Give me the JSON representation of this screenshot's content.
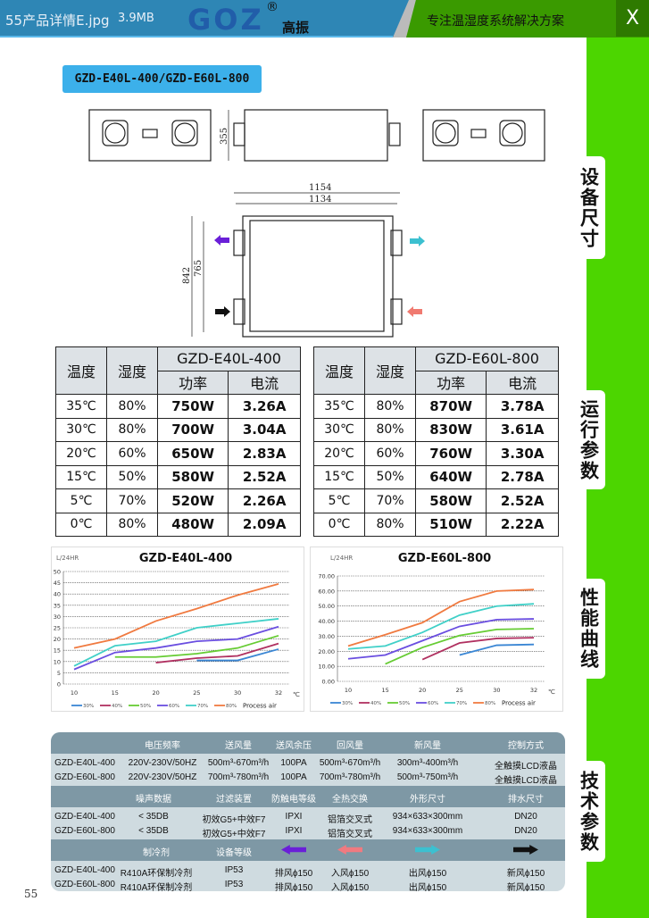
{
  "header": {
    "file_name": "55产品详情E.jpg",
    "file_size": "3.9MB",
    "logo": "GOZ",
    "logo_cn": "高振",
    "registered": "®",
    "slogan": "专注温湿度系统解决方案",
    "close": "X"
  },
  "model_label": "GZD-E40L-400/GZD-E60L-800",
  "side_tabs": [
    "设备尺寸",
    "运行参数",
    "性能曲线",
    "技术参数"
  ],
  "dimensions": {
    "height": "355",
    "width_outer": "1154",
    "width_inner": "1134",
    "depth_outer": "842",
    "depth_inner": "765"
  },
  "arrow_colors": {
    "exhaust": "#6a1fd8",
    "intake": "#f07070",
    "outlet": "#3cc0d0",
    "fresh": "#111111"
  },
  "tables": [
    {
      "model": "GZD-E40L-400",
      "headers": {
        "temp": "温度",
        "hum": "湿度",
        "power": "功率",
        "current": "电流"
      },
      "rows": [
        [
          "35℃",
          "80%",
          "750W",
          "3.26A"
        ],
        [
          "30℃",
          "80%",
          "700W",
          "3.04A"
        ],
        [
          "20℃",
          "60%",
          "650W",
          "2.83A"
        ],
        [
          "15℃",
          "50%",
          "580W",
          "2.52A"
        ],
        [
          "5℃",
          "70%",
          "520W",
          "2.26A"
        ],
        [
          "0℃",
          "80%",
          "480W",
          "2.09A"
        ]
      ]
    },
    {
      "model": "GZD-E60L-800",
      "headers": {
        "temp": "温度",
        "hum": "湿度",
        "power": "功率",
        "current": "电流"
      },
      "rows": [
        [
          "35℃",
          "80%",
          "870W",
          "3.78A"
        ],
        [
          "30℃",
          "80%",
          "830W",
          "3.61A"
        ],
        [
          "20℃",
          "60%",
          "760W",
          "3.30A"
        ],
        [
          "15℃",
          "50%",
          "640W",
          "2.78A"
        ],
        [
          "5℃",
          "70%",
          "580W",
          "2.52A"
        ],
        [
          "0℃",
          "80%",
          "510W",
          "2.22A"
        ]
      ]
    }
  ],
  "chart_data": [
    {
      "type": "line",
      "title": "GZD-E40L-400",
      "ylabel": "L/24HR",
      "xlabel": "℃",
      "legend_suffix": "Process air",
      "legend_placement": "bottom",
      "grid": true,
      "x": [
        10,
        15,
        20,
        25,
        30,
        32
      ],
      "ylim": [
        0,
        50
      ],
      "yticks": [
        0,
        5,
        10,
        15,
        20,
        25,
        30,
        35,
        40,
        45,
        50
      ],
      "ytick_labels": [
        "0",
        "5",
        "10",
        "15",
        "20",
        "25",
        "30",
        "35",
        "40",
        "45",
        "50"
      ],
      "series": [
        {
          "name": "30%",
          "color": "#3a86d4",
          "values": [
            null,
            null,
            null,
            10.5,
            10.5,
            15.5
          ]
        },
        {
          "name": "40%",
          "color": "#b03060",
          "values": [
            null,
            null,
            9.5,
            11.5,
            12.5,
            18
          ]
        },
        {
          "name": "50%",
          "color": "#66cc33",
          "values": [
            null,
            12,
            12,
            13.5,
            16,
            21.5
          ]
        },
        {
          "name": "60%",
          "color": "#6a4ee0",
          "values": [
            6.5,
            14,
            16,
            19,
            20,
            25.5
          ]
        },
        {
          "name": "70%",
          "color": "#40d0c8",
          "values": [
            8,
            17,
            19,
            25,
            27,
            29
          ]
        },
        {
          "name": "80%",
          "color": "#f07a40",
          "values": [
            16,
            20,
            28,
            33.5,
            39.5,
            44.5
          ]
        }
      ]
    },
    {
      "type": "line",
      "title": "GZD-E60L-800",
      "ylabel": "L/24HR",
      "xlabel": "℃",
      "legend_suffix": "Process air",
      "legend_placement": "bottom",
      "grid": true,
      "x": [
        10,
        15,
        20,
        25,
        30,
        32
      ],
      "ylim": [
        0,
        70
      ],
      "yticks": [
        0,
        10,
        20,
        30,
        40,
        50,
        60,
        70
      ],
      "ytick_labels": [
        "0.00",
        "10.00",
        "20.00",
        "30.00",
        "40.00",
        "50.00",
        "60.00",
        "70.00"
      ],
      "series": [
        {
          "name": "30%",
          "color": "#3a86d4",
          "values": [
            null,
            null,
            null,
            17.5,
            24,
            24.5
          ]
        },
        {
          "name": "40%",
          "color": "#b03060",
          "values": [
            null,
            null,
            14.5,
            25.5,
            28.5,
            29
          ]
        },
        {
          "name": "50%",
          "color": "#66cc33",
          "values": [
            null,
            11.5,
            22.5,
            30.5,
            34.5,
            35
          ]
        },
        {
          "name": "60%",
          "color": "#6a4ee0",
          "values": [
            15,
            17.5,
            27,
            36.5,
            41,
            41.5
          ]
        },
        {
          "name": "70%",
          "color": "#40d0c8",
          "values": [
            21.5,
            23.5,
            32.5,
            44,
            50,
            51.5
          ]
        },
        {
          "name": "80%",
          "color": "#f07a40",
          "values": [
            23.5,
            31,
            39,
            53,
            60,
            61
          ]
        }
      ]
    }
  ],
  "spec": {
    "sections": [
      {
        "headers": [
          "",
          "电压频率",
          "送风量",
          "送风余压",
          "回风量",
          "新风量",
          "控制方式"
        ],
        "rows": [
          [
            "GZD-E40L-400",
            "220V-230V/50HZ",
            "500m³-670m³/h",
            "100PA",
            "500m³-670m³/h",
            "300m³-400m³/h",
            "全触摸LCD液晶"
          ],
          [
            "GZD-E60L-800",
            "220V-230V/50HZ",
            "700m³-780m³/h",
            "100PA",
            "700m³-780m³/h",
            "500m³-750m³/h",
            "全触摸LCD液晶"
          ]
        ]
      },
      {
        "headers": [
          "",
          "噪声数据",
          "过滤装置",
          "防触电等级",
          "全热交换",
          "外形尺寸",
          "排水尺寸"
        ],
        "rows": [
          [
            "GZD-E40L-400",
            "< 35DB",
            "初效G5+中效F7",
            "IPXI",
            "铝箔交叉式",
            "934×633×300mm",
            "DN20"
          ],
          [
            "GZD-E60L-800",
            "< 35DB",
            "初效G5+中效F7",
            "IPXI",
            "铝箔交叉式",
            "934×633×300mm",
            "DN20"
          ]
        ]
      },
      {
        "headers": [
          "",
          "制冷剂",
          "设备等级",
          "",
          "",
          "",
          ""
        ],
        "rows": [
          [
            "GZD-E40L-400",
            "R410A环保制冷剂",
            "IP53",
            "排风ϕ150",
            "入风ϕ150",
            "出风ϕ150",
            "新风ϕ150"
          ],
          [
            "GZD-E60L-800",
            "R410A环保制冷剂",
            "IP53",
            "排风ϕ150",
            "入风ϕ150",
            "出风ϕ150",
            "新风ϕ150"
          ]
        ]
      }
    ]
  },
  "page_number": "55"
}
